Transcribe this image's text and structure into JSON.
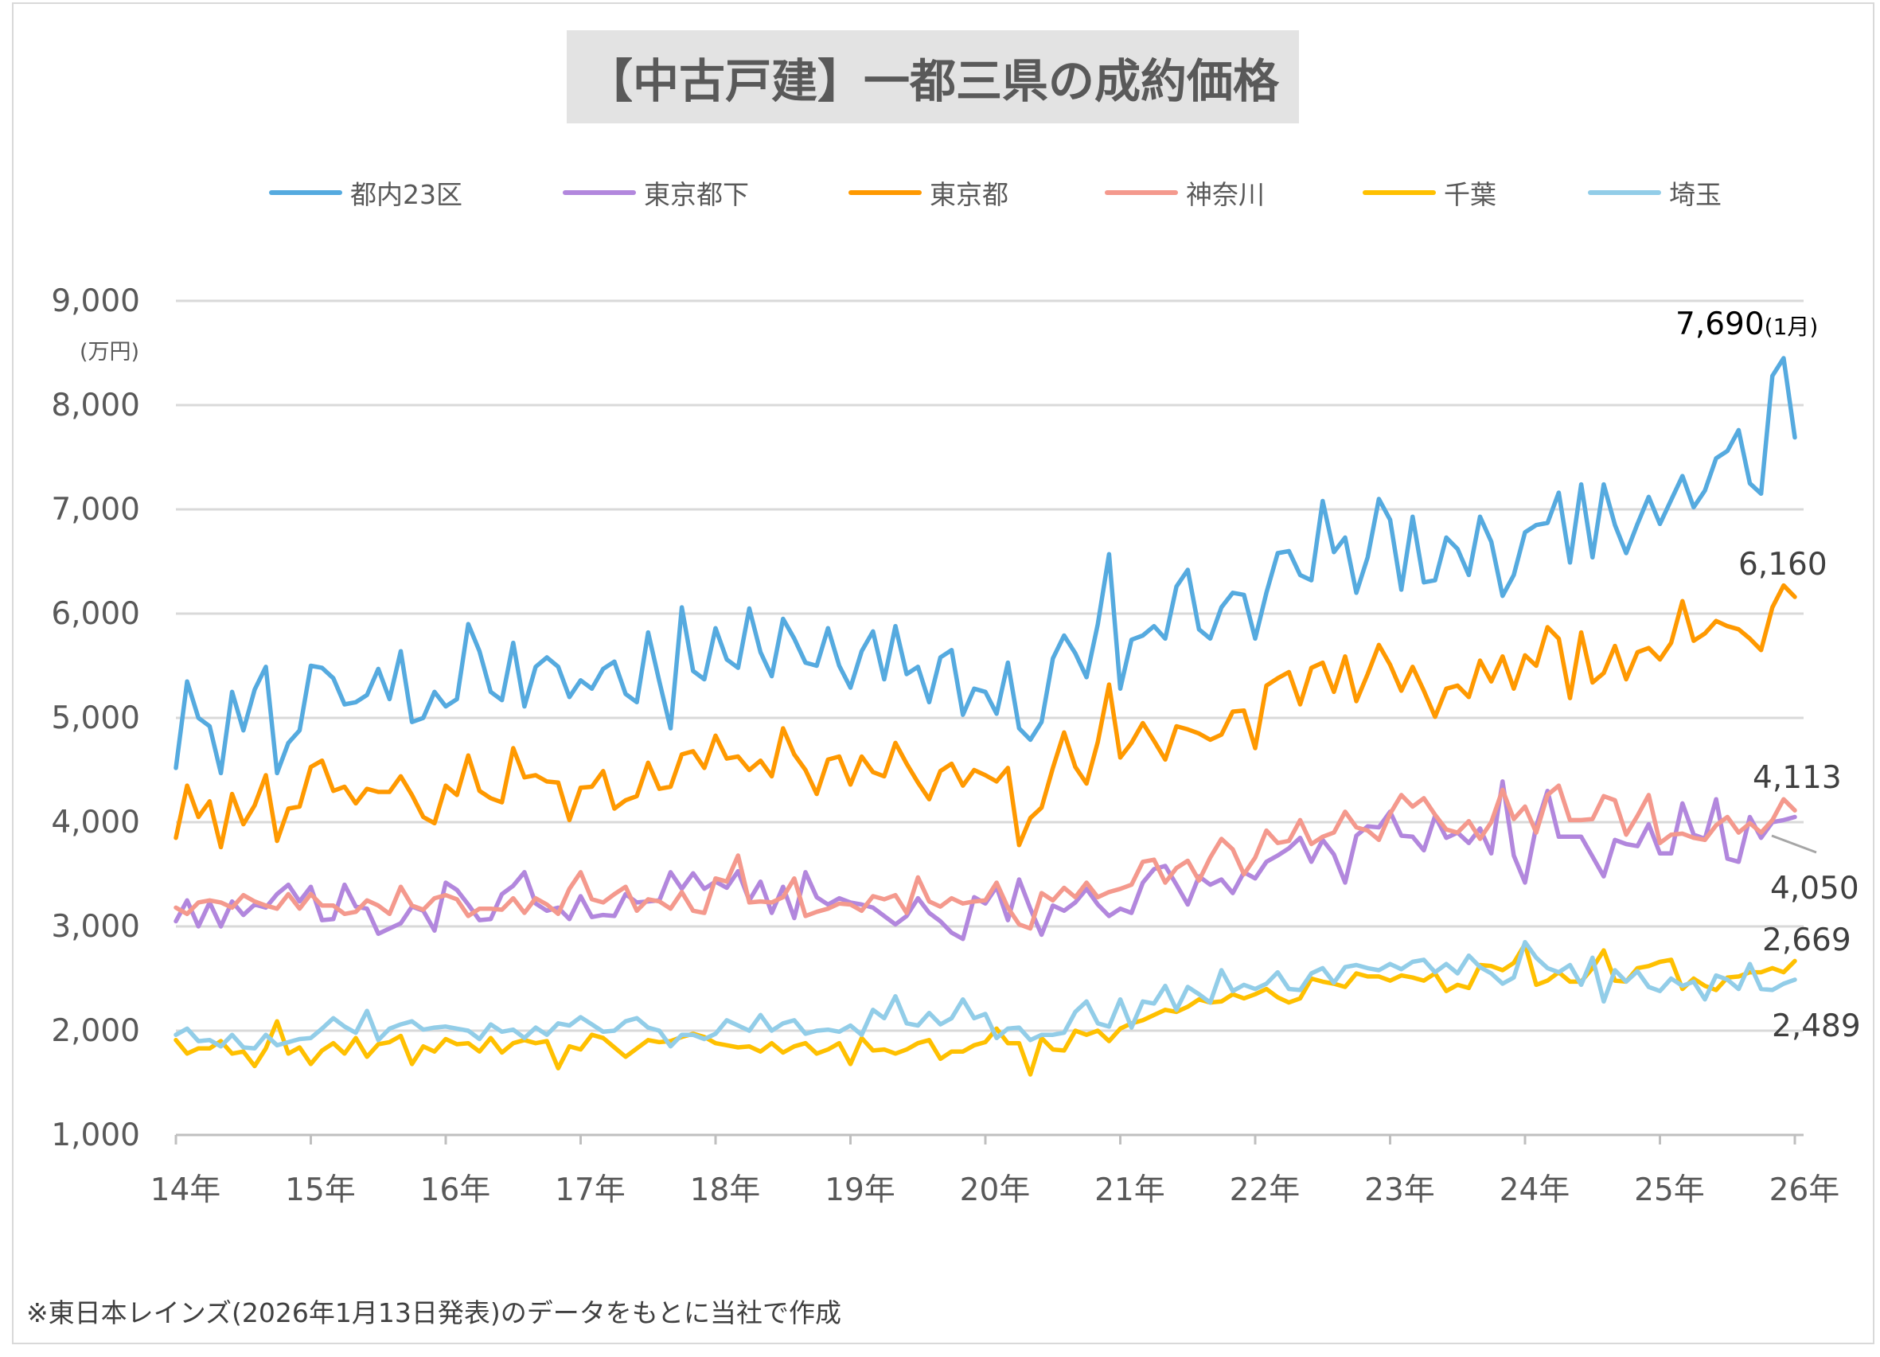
{
  "chart_data": {
    "type": "line",
    "title": "【中古戸建】一都三県の成約価格",
    "ylabel": "(万円)",
    "xlabel": "",
    "ylim": [
      1000,
      9000
    ],
    "yticks": [
      "1,000",
      "2,000",
      "3,000",
      "4,000",
      "5,000",
      "6,000",
      "7,000",
      "8,000",
      "9,000"
    ],
    "ytick_values": [
      1000,
      2000,
      3000,
      4000,
      5000,
      6000,
      7000,
      8000,
      9000
    ],
    "xticks": [
      "14年",
      "15年",
      "16年",
      "17年",
      "18年",
      "19年",
      "20年",
      "21年",
      "22年",
      "23年",
      "24年",
      "25年",
      "26年"
    ],
    "x_start": "2014-01",
    "x_end": "2026-01",
    "frequency": "monthly",
    "grid": true,
    "legend_position": "top",
    "series": [
      {
        "name": "都内23区",
        "color": "#55aadf",
        "values": [
          4520,
          5350,
          5000,
          4920,
          4470,
          5250,
          4880,
          5270,
          5490,
          4470,
          4760,
          4880,
          5500,
          5480,
          5380,
          5130,
          5150,
          5220,
          5470,
          5180,
          5640,
          4960,
          5000,
          5250,
          5110,
          5180,
          5900,
          5640,
          5250,
          5170,
          5720,
          5110,
          5490,
          5580,
          5490,
          5200,
          5360,
          5280,
          5470,
          5540,
          5230,
          5150,
          5820,
          5350,
          4900,
          6060,
          5450,
          5370,
          5860,
          5560,
          5480,
          6050,
          5630,
          5400,
          5950,
          5760,
          5530,
          5500,
          5860,
          5500,
          5290,
          5640,
          5830,
          5370,
          5880,
          5420,
          5490,
          5150,
          5580,
          5650,
          5030,
          5280,
          5250,
          5040,
          5530,
          4900,
          4790,
          4960,
          5570,
          5790,
          5620,
          5390,
          5900,
          6570,
          5280,
          5750,
          5790,
          5880,
          5760,
          6260,
          6420,
          5850,
          5760,
          6060,
          6200,
          6180,
          5760,
          6200,
          6580,
          6600,
          6370,
          6320,
          7080,
          6590,
          6730,
          6200,
          6540,
          7100,
          6900,
          6230,
          6930,
          6300,
          6320,
          6730,
          6620,
          6370,
          6930,
          6690,
          6170,
          6370,
          6780,
          6850,
          6870,
          7160,
          6490,
          7240,
          6540,
          7240,
          6850,
          6580,
          6860,
          7120,
          6860,
          7090,
          7320,
          7020,
          7180,
          7490,
          7560,
          7760,
          7250,
          7150,
          8280,
          8450,
          7690
        ]
      },
      {
        "name": "東京都下",
        "color": "#b287dd",
        "values": [
          3050,
          3250,
          3000,
          3230,
          3000,
          3240,
          3110,
          3210,
          3180,
          3310,
          3400,
          3240,
          3380,
          3060,
          3070,
          3400,
          3190,
          3170,
          2930,
          2980,
          3030,
          3190,
          3150,
          2960,
          3420,
          3350,
          3210,
          3060,
          3070,
          3310,
          3390,
          3520,
          3220,
          3150,
          3180,
          3070,
          3290,
          3090,
          3110,
          3100,
          3310,
          3230,
          3240,
          3250,
          3520,
          3360,
          3510,
          3360,
          3430,
          3370,
          3530,
          3250,
          3430,
          3130,
          3380,
          3080,
          3520,
          3280,
          3210,
          3270,
          3230,
          3210,
          3180,
          3100,
          3020,
          3100,
          3270,
          3130,
          3050,
          2940,
          2880,
          3280,
          3220,
          3380,
          3060,
          3450,
          3170,
          2920,
          3200,
          3150,
          3230,
          3360,
          3210,
          3100,
          3170,
          3130,
          3420,
          3550,
          3580,
          3400,
          3210,
          3480,
          3400,
          3450,
          3320,
          3520,
          3460,
          3620,
          3680,
          3750,
          3850,
          3620,
          3830,
          3690,
          3420,
          3870,
          3960,
          3950,
          4100,
          3870,
          3860,
          3730,
          4060,
          3850,
          3900,
          3800,
          3940,
          3700,
          4390,
          3680,
          3420,
          3960,
          4300,
          3860,
          3860,
          3860,
          3670,
          3480,
          3830,
          3790,
          3770,
          3980,
          3700,
          3700,
          4180,
          3880,
          3840,
          4220,
          3650,
          3620,
          4050,
          3850,
          4000,
          4020,
          4050
        ]
      },
      {
        "name": "東京都",
        "color": "#ff9900",
        "values": [
          3850,
          4350,
          4050,
          4200,
          3760,
          4270,
          3980,
          4160,
          4450,
          3820,
          4130,
          4150,
          4530,
          4590,
          4300,
          4340,
          4180,
          4320,
          4290,
          4290,
          4440,
          4260,
          4050,
          3990,
          4350,
          4260,
          4640,
          4300,
          4230,
          4190,
          4710,
          4430,
          4450,
          4390,
          4380,
          4020,
          4330,
          4340,
          4490,
          4130,
          4210,
          4250,
          4570,
          4320,
          4340,
          4650,
          4680,
          4520,
          4830,
          4610,
          4630,
          4500,
          4590,
          4440,
          4900,
          4650,
          4500,
          4270,
          4600,
          4630,
          4360,
          4630,
          4480,
          4440,
          4760,
          4560,
          4380,
          4220,
          4490,
          4560,
          4350,
          4500,
          4450,
          4390,
          4520,
          3780,
          4040,
          4140,
          4520,
          4860,
          4530,
          4370,
          4770,
          5320,
          4620,
          4760,
          4950,
          4780,
          4600,
          4920,
          4890,
          4850,
          4790,
          4840,
          5060,
          5070,
          4710,
          5310,
          5380,
          5440,
          5130,
          5480,
          5530,
          5250,
          5590,
          5160,
          5420,
          5700,
          5510,
          5260,
          5490,
          5260,
          5010,
          5280,
          5310,
          5200,
          5550,
          5350,
          5590,
          5280,
          5600,
          5500,
          5870,
          5760,
          5190,
          5820,
          5340,
          5430,
          5690,
          5370,
          5630,
          5670,
          5560,
          5720,
          6120,
          5740,
          5810,
          5930,
          5880,
          5850,
          5760,
          5650,
          6060,
          6270,
          6160
        ]
      },
      {
        "name": "神奈川",
        "color": "#f4998d",
        "values": [
          3180,
          3120,
          3230,
          3250,
          3230,
          3180,
          3300,
          3240,
          3200,
          3170,
          3310,
          3170,
          3310,
          3200,
          3200,
          3120,
          3140,
          3250,
          3200,
          3120,
          3380,
          3200,
          3160,
          3270,
          3300,
          3260,
          3100,
          3170,
          3170,
          3160,
          3270,
          3130,
          3270,
          3210,
          3120,
          3360,
          3520,
          3260,
          3230,
          3310,
          3380,
          3150,
          3260,
          3240,
          3170,
          3330,
          3150,
          3130,
          3460,
          3430,
          3680,
          3230,
          3240,
          3230,
          3280,
          3460,
          3100,
          3140,
          3170,
          3220,
          3210,
          3150,
          3290,
          3260,
          3300,
          3130,
          3470,
          3240,
          3190,
          3270,
          3220,
          3240,
          3250,
          3420,
          3180,
          3020,
          2980,
          3320,
          3250,
          3370,
          3280,
          3420,
          3280,
          3330,
          3360,
          3400,
          3620,
          3640,
          3420,
          3560,
          3630,
          3440,
          3660,
          3840,
          3740,
          3500,
          3660,
          3920,
          3800,
          3820,
          4020,
          3790,
          3860,
          3900,
          4100,
          3950,
          3920,
          3830,
          4080,
          4260,
          4150,
          4230,
          4070,
          3930,
          3900,
          4010,
          3840,
          4000,
          4310,
          4030,
          4150,
          3900,
          4260,
          4350,
          4020,
          4020,
          4030,
          4250,
          4210,
          3880,
          4060,
          4260,
          3800,
          3880,
          3890,
          3850,
          3830,
          3970,
          4050,
          3900,
          3990,
          3900,
          4020,
          4220,
          4113
        ]
      },
      {
        "name": "千葉",
        "color": "#ffc000",
        "values": [
          1910,
          1780,
          1830,
          1830,
          1900,
          1780,
          1800,
          1660,
          1830,
          2090,
          1780,
          1840,
          1680,
          1810,
          1880,
          1780,
          1930,
          1750,
          1870,
          1890,
          1950,
          1680,
          1850,
          1800,
          1920,
          1870,
          1880,
          1800,
          1930,
          1790,
          1880,
          1910,
          1880,
          1900,
          1640,
          1850,
          1820,
          1960,
          1930,
          1840,
          1750,
          1830,
          1910,
          1890,
          1900,
          1940,
          1970,
          1940,
          1880,
          1860,
          1840,
          1850,
          1800,
          1880,
          1790,
          1850,
          1880,
          1780,
          1820,
          1880,
          1680,
          1930,
          1810,
          1820,
          1780,
          1820,
          1880,
          1910,
          1730,
          1800,
          1800,
          1860,
          1890,
          2020,
          1880,
          1880,
          1580,
          1930,
          1820,
          1810,
          2000,
          1960,
          2000,
          1900,
          2020,
          2070,
          2100,
          2150,
          2200,
          2180,
          2230,
          2300,
          2270,
          2280,
          2350,
          2310,
          2350,
          2400,
          2320,
          2270,
          2310,
          2500,
          2470,
          2450,
          2420,
          2550,
          2520,
          2520,
          2480,
          2530,
          2510,
          2480,
          2550,
          2380,
          2440,
          2410,
          2630,
          2620,
          2580,
          2650,
          2830,
          2440,
          2480,
          2560,
          2470,
          2470,
          2600,
          2770,
          2480,
          2470,
          2600,
          2620,
          2660,
          2680,
          2400,
          2500,
          2430,
          2390,
          2510,
          2520,
          2560,
          2560,
          2600,
          2560,
          2669
        ]
      },
      {
        "name": "埼玉",
        "color": "#92cde8",
        "values": [
          1960,
          2020,
          1900,
          1910,
          1850,
          1960,
          1840,
          1830,
          1960,
          1860,
          1890,
          1920,
          1930,
          2020,
          2120,
          2040,
          1980,
          2190,
          1910,
          2020,
          2060,
          2090,
          2010,
          2030,
          2040,
          2020,
          2000,
          1920,
          2060,
          1990,
          2010,
          1930,
          2030,
          1960,
          2070,
          2050,
          2130,
          2060,
          1990,
          2000,
          2090,
          2120,
          2030,
          2000,
          1850,
          1960,
          1960,
          1920,
          1970,
          2100,
          2050,
          2000,
          2150,
          2000,
          2070,
          2100,
          1970,
          2000,
          2010,
          1990,
          2050,
          1960,
          2200,
          2120,
          2330,
          2070,
          2050,
          2170,
          2060,
          2120,
          2300,
          2120,
          2160,
          1930,
          2020,
          2030,
          1910,
          1960,
          1960,
          1980,
          2180,
          2280,
          2070,
          2040,
          2300,
          2030,
          2280,
          2260,
          2430,
          2200,
          2420,
          2350,
          2270,
          2580,
          2380,
          2440,
          2400,
          2450,
          2560,
          2400,
          2390,
          2550,
          2600,
          2460,
          2610,
          2630,
          2600,
          2580,
          2640,
          2590,
          2660,
          2680,
          2560,
          2640,
          2550,
          2720,
          2610,
          2550,
          2450,
          2510,
          2850,
          2700,
          2600,
          2560,
          2630,
          2440,
          2700,
          2280,
          2580,
          2470,
          2570,
          2420,
          2380,
          2500,
          2430,
          2470,
          2300,
          2530,
          2490,
          2400,
          2640,
          2400,
          2390,
          2450,
          2489
        ]
      }
    ],
    "annotations": [
      {
        "series": "都内23区",
        "value": "7,690",
        "suffix": "(1月)"
      },
      {
        "series": "東京都",
        "value": "6,160"
      },
      {
        "series": "神奈川",
        "value": "4,113"
      },
      {
        "series": "東京都下",
        "value": "4,050"
      },
      {
        "series": "千葉",
        "value": "2,669"
      },
      {
        "series": "埼玉",
        "value": "2,489"
      }
    ]
  },
  "footnote": "※東日本レインズ(2026年1月13日発表)のデータをもとに当社で作成"
}
